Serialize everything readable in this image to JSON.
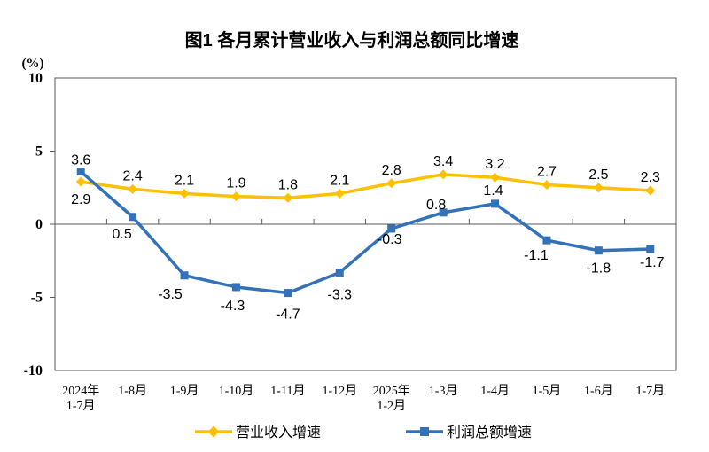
{
  "chart_data": {
    "type": "line",
    "title": "图1 各月累计营业收入与利润总额同比增速",
    "unit_label": "(%)",
    "categories": [
      "2024年\n1-7月",
      "1-8月",
      "1-9月",
      "1-10月",
      "1-11月",
      "1-12月",
      "2025年\n1-2月",
      "1-3月",
      "1-4月",
      "1-5月",
      "1-6月",
      "1-7月"
    ],
    "ylim": [
      -10,
      10
    ],
    "yticks": [
      10,
      5,
      0,
      -5,
      -10
    ],
    "grid": false,
    "legend_position": "bottom",
    "axis_color": "#595959",
    "text_color": "#000000",
    "series": [
      {
        "name": "营业收入增速",
        "color": "#FFC000",
        "marker": "diamond",
        "values": [
          2.9,
          2.4,
          2.1,
          1.9,
          1.8,
          2.1,
          2.8,
          3.4,
          3.2,
          2.7,
          2.5,
          2.3
        ],
        "label_side": [
          "below",
          "above",
          "above",
          "above",
          "above",
          "above",
          "above",
          "above",
          "above",
          "above",
          "above",
          "above"
        ],
        "label_dx": [
          0,
          0,
          0,
          0,
          0,
          0,
          0,
          0,
          0,
          0,
          0,
          0
        ],
        "label_dy": [
          3,
          0,
          0,
          0,
          0,
          0,
          0,
          0,
          0,
          0,
          0,
          0
        ]
      },
      {
        "name": "利润总额增速",
        "color": "#3372B8",
        "marker": "square",
        "values": [
          3.6,
          0.5,
          -3.5,
          -4.3,
          -4.7,
          -3.3,
          -0.3,
          0.8,
          1.4,
          -1.1,
          -1.8,
          -1.7
        ],
        "label_side": [
          "above",
          "below",
          "below",
          "below",
          "below",
          "below",
          "below",
          "above",
          "above",
          "below",
          "below",
          "below"
        ],
        "label_dx": [
          0,
          -12,
          -16,
          -4,
          0,
          0,
          -2,
          -8,
          -2,
          -12,
          0,
          2
        ],
        "label_dy": [
          2,
          2,
          4,
          4,
          7,
          8,
          -5,
          6,
          0,
          0,
          3,
          -2
        ]
      }
    ]
  }
}
